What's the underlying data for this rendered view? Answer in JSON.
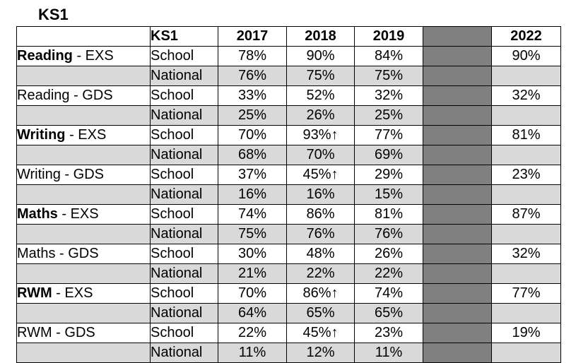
{
  "title": "KS1",
  "header": {
    "type_label": "KS1",
    "years": [
      "2017",
      "2018",
      "2019",
      "2022"
    ]
  },
  "rows": [
    {
      "subject": "Reading",
      "subject_bold": true,
      "measure": " - EXS",
      "school": [
        "78%",
        "90%",
        "84%",
        "90%"
      ],
      "national": [
        "76%",
        "75%",
        "75%",
        ""
      ]
    },
    {
      "subject": "Reading",
      "subject_bold": false,
      "measure": " - GDS",
      "school": [
        "33%",
        "52%",
        "32%",
        "32%"
      ],
      "national": [
        "25%",
        "26%",
        "25%",
        ""
      ]
    },
    {
      "subject": "Writing",
      "subject_bold": true,
      "measure": " - EXS",
      "school": [
        "70%",
        "93%↑",
        "77%",
        "81%"
      ],
      "national": [
        "68%",
        "70%",
        "69%",
        ""
      ]
    },
    {
      "subject": "Writing",
      "subject_bold": false,
      "measure": " - GDS",
      "school": [
        "37%",
        "45%↑",
        "29%",
        "23%"
      ],
      "national": [
        "16%",
        "16%",
        "15%",
        ""
      ]
    },
    {
      "subject": "Maths",
      "subject_bold": true,
      "measure": " - EXS",
      "school": [
        "74%",
        "86%",
        "81%",
        "87%"
      ],
      "national": [
        "75%",
        "76%",
        "76%",
        ""
      ]
    },
    {
      "subject": "Maths",
      "subject_bold": false,
      "measure": " - GDS",
      "school": [
        "30%",
        "48%",
        "26%",
        "32%"
      ],
      "national": [
        "21%",
        "22%",
        "22%",
        ""
      ]
    },
    {
      "subject": "RWM",
      "subject_bold": true,
      "measure": " - EXS",
      "school": [
        "70%",
        "86%↑",
        "74%",
        "77%"
      ],
      "national": [
        "64%",
        "65%",
        "65%",
        ""
      ]
    },
    {
      "subject": "RWM",
      "subject_bold": false,
      "measure": " - GDS",
      "school": [
        "22%",
        "45%↑",
        "23%",
        "19%"
      ],
      "national": [
        "11%",
        "12%",
        "11%",
        ""
      ]
    }
  ],
  "labels": {
    "school": "School",
    "national": "National"
  },
  "colors": {
    "national_row": "#d9d9d9",
    "gap_column": "#808080"
  }
}
